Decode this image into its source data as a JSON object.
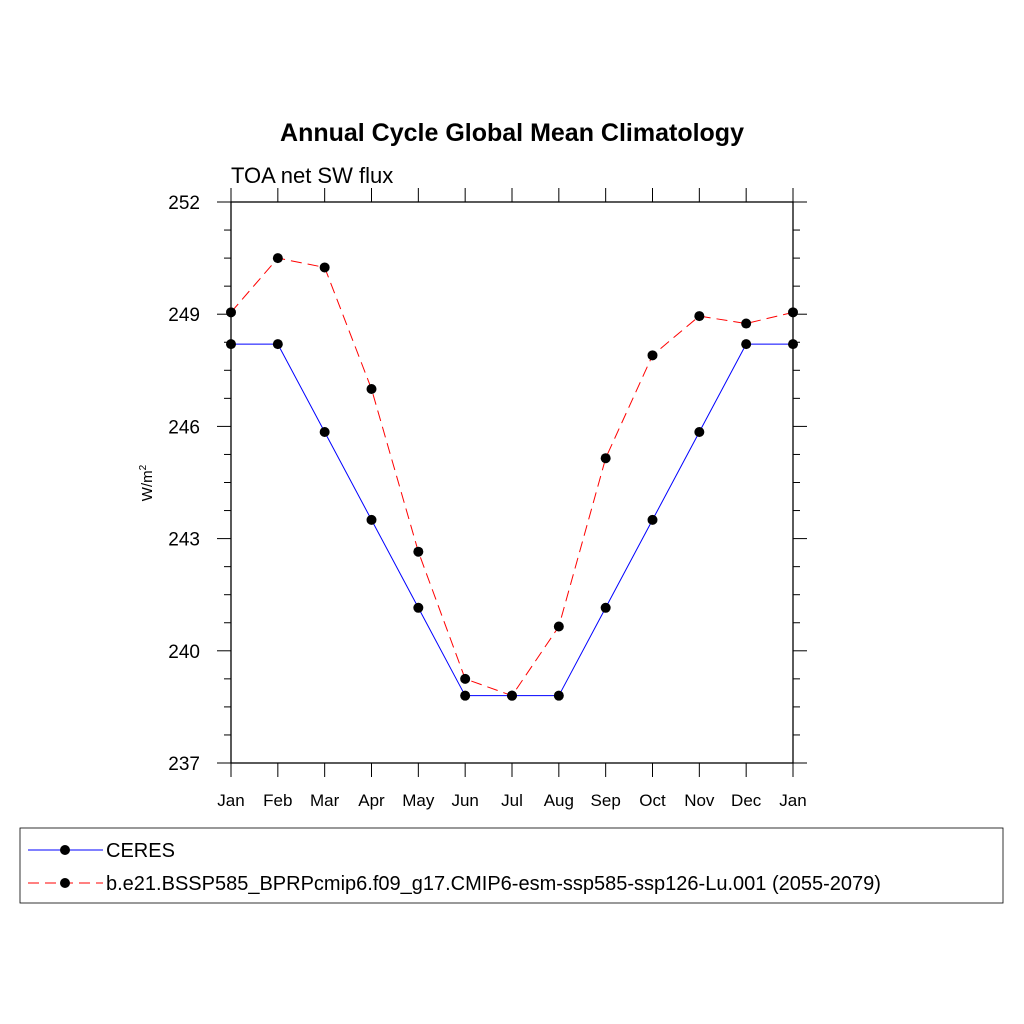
{
  "chart_data": {
    "type": "line",
    "title": "Annual Cycle Global Mean Climatology",
    "subtitle": "TOA net SW flux",
    "xlabel": "",
    "ylabel": "W/m",
    "ylabel_superscript": "2",
    "ylim": [
      237,
      252
    ],
    "yticks": [
      "237",
      "240",
      "243",
      "246",
      "249",
      "252"
    ],
    "categories": [
      "Jan",
      "Feb",
      "Mar",
      "Apr",
      "May",
      "Jun",
      "Jul",
      "Aug",
      "Sep",
      "Oct",
      "Nov",
      "Dec",
      "Jan"
    ],
    "legend_position": "bottom",
    "series": [
      {
        "name": "CERES",
        "color": "#0000ff",
        "dash": "solid",
        "marker": "filled-circle",
        "values": [
          248.2,
          248.2,
          245.85,
          243.5,
          241.15,
          238.8,
          238.8,
          238.8,
          241.15,
          243.5,
          245.85,
          248.2,
          248.2
        ]
      },
      {
        "name": "b.e21.BSSP585_BPRPcmip6.f09_g17.CMIP6-esm-ssp585-ssp126-Lu.001 (2055-2079)",
        "color": "#ff0000",
        "dash": "dashed",
        "marker": "filled-circle",
        "values": [
          249.05,
          250.5,
          250.25,
          247.0,
          242.65,
          239.25,
          238.8,
          240.65,
          245.15,
          247.9,
          248.95,
          248.75,
          249.05
        ]
      }
    ]
  }
}
